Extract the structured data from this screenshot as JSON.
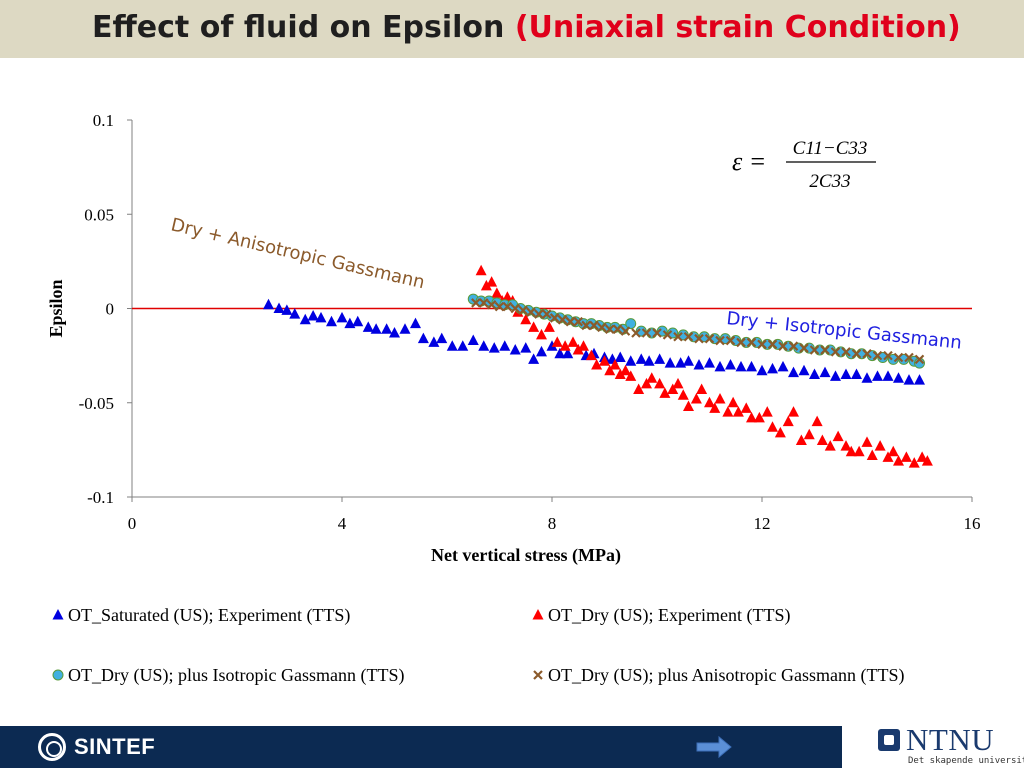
{
  "slide": {
    "title_main": "Effect of fluid on Epsilon ",
    "title_highlight": "(Uniaxial strain Condition)",
    "footer_logo": "SINTEF",
    "ntnu_name": "NTNU",
    "ntnu_sub": "Det skapende universitet"
  },
  "colors": {
    "title_bar": "#ddd9c3",
    "highlight": "#e0001b",
    "saturated": "#0000e0",
    "dry": "#ff0000",
    "isotropic": "#40b0e0",
    "anisotropic": "#8b5a2b",
    "zero_line": "#e00000",
    "footer": "#0c2a52"
  },
  "chart_data": {
    "type": "scatter",
    "title": "",
    "xlabel": "Net vertical stress (MPa)",
    "ylabel": "Epsilon",
    "xlim": [
      0,
      16
    ],
    "ylim": [
      -0.1,
      0.1
    ],
    "xticks": [
      "0",
      "4",
      "8",
      "12",
      "16"
    ],
    "yticks": [
      "0.1",
      "0.05",
      "0",
      "-0.05",
      "-0.1"
    ],
    "grid": false,
    "equation": {
      "lhs": "ε =",
      "numerator": "C11−C33",
      "denominator": "2C33"
    },
    "annotations": [
      {
        "text": "Dry + Anisotropic Gassmann",
        "color": "#8b5a2b"
      },
      {
        "text": "Dry + Isotropic Gassmann",
        "color": "#2020e0"
      }
    ],
    "series": [
      {
        "name": "OT_Saturated (US); Experiment (TTS)",
        "marker": "triangle",
        "color": "#0000e0",
        "x": [
          2.6,
          2.8,
          2.95,
          3.1,
          3.3,
          3.45,
          3.6,
          3.8,
          4.0,
          4.15,
          4.3,
          4.5,
          4.65,
          4.85,
          5.0,
          5.2,
          5.4,
          5.55,
          5.75,
          5.9,
          6.1,
          6.3,
          6.5,
          6.7,
          6.9,
          7.1,
          7.3,
          7.5,
          7.65,
          7.8,
          8.0,
          8.15,
          8.3,
          8.5,
          8.65,
          8.8,
          9.0,
          9.15,
          9.3,
          9.5,
          9.7,
          9.85,
          10.05,
          10.25,
          10.45,
          10.6,
          10.8,
          11.0,
          11.2,
          11.4,
          11.6,
          11.8,
          12.0,
          12.2,
          12.4,
          12.6,
          12.8,
          13.0,
          13.2,
          13.4,
          13.6,
          13.8,
          14.0,
          14.2,
          14.4,
          14.6,
          14.8,
          15.0
        ],
        "y": [
          0.002,
          0.0,
          -0.001,
          -0.003,
          -0.006,
          -0.004,
          -0.005,
          -0.007,
          -0.005,
          -0.008,
          -0.007,
          -0.01,
          -0.011,
          -0.011,
          -0.013,
          -0.011,
          -0.008,
          -0.016,
          -0.018,
          -0.016,
          -0.02,
          -0.02,
          -0.017,
          -0.02,
          -0.021,
          -0.02,
          -0.022,
          -0.021,
          -0.027,
          -0.023,
          -0.02,
          -0.024,
          -0.024,
          -0.022,
          -0.025,
          -0.024,
          -0.026,
          -0.027,
          -0.026,
          -0.028,
          -0.027,
          -0.028,
          -0.027,
          -0.029,
          -0.029,
          -0.028,
          -0.03,
          -0.029,
          -0.031,
          -0.03,
          -0.031,
          -0.031,
          -0.033,
          -0.032,
          -0.031,
          -0.034,
          -0.033,
          -0.035,
          -0.034,
          -0.036,
          -0.035,
          -0.035,
          -0.037,
          -0.036,
          -0.036,
          -0.037,
          -0.038,
          -0.038
        ]
      },
      {
        "name": "OT_Dry (US); Experiment (TTS)",
        "marker": "triangle",
        "color": "#ff0000",
        "x": [
          6.65,
          6.75,
          6.85,
          6.95,
          7.05,
          7.15,
          7.25,
          7.35,
          7.5,
          7.65,
          7.8,
          7.95,
          8.1,
          8.25,
          8.4,
          8.5,
          8.6,
          8.75,
          8.85,
          9.0,
          9.1,
          9.2,
          9.3,
          9.4,
          9.5,
          9.65,
          9.8,
          9.9,
          10.05,
          10.15,
          10.3,
          10.4,
          10.5,
          10.6,
          10.75,
          10.85,
          11.0,
          11.1,
          11.2,
          11.35,
          11.45,
          11.55,
          11.7,
          11.8,
          11.95,
          12.1,
          12.2,
          12.35,
          12.5,
          12.6,
          12.75,
          12.9,
          13.05,
          13.15,
          13.3,
          13.45,
          13.6,
          13.7,
          13.85,
          14.0,
          14.1,
          14.25,
          14.4,
          14.5,
          14.6,
          14.75,
          14.9,
          15.05,
          15.15
        ],
        "y": [
          0.02,
          0.012,
          0.014,
          0.008,
          0.004,
          0.006,
          0.004,
          -0.002,
          -0.006,
          -0.01,
          -0.014,
          -0.01,
          -0.018,
          -0.02,
          -0.018,
          -0.022,
          -0.02,
          -0.025,
          -0.03,
          -0.028,
          -0.033,
          -0.03,
          -0.035,
          -0.033,
          -0.036,
          -0.043,
          -0.04,
          -0.037,
          -0.04,
          -0.045,
          -0.043,
          -0.04,
          -0.046,
          -0.052,
          -0.048,
          -0.043,
          -0.05,
          -0.053,
          -0.048,
          -0.055,
          -0.05,
          -0.055,
          -0.053,
          -0.058,
          -0.058,
          -0.055,
          -0.063,
          -0.066,
          -0.06,
          -0.055,
          -0.07,
          -0.067,
          -0.06,
          -0.07,
          -0.073,
          -0.068,
          -0.073,
          -0.076,
          -0.076,
          -0.071,
          -0.078,
          -0.073,
          -0.079,
          -0.076,
          -0.081,
          -0.079,
          -0.082,
          -0.079,
          -0.081
        ]
      },
      {
        "name": "OT_Dry (US); plus Isotropic Gassmann (TTS)",
        "marker": "circle",
        "color": "#40b0e0",
        "x": [
          6.5,
          6.65,
          6.8,
          6.95,
          7.1,
          7.25,
          7.4,
          7.55,
          7.7,
          7.85,
          8.0,
          8.15,
          8.3,
          8.45,
          8.6,
          8.75,
          8.9,
          9.05,
          9.2,
          9.35,
          9.5,
          9.7,
          9.9,
          10.1,
          10.3,
          10.5,
          10.7,
          10.9,
          11.1,
          11.3,
          11.5,
          11.7,
          11.9,
          12.1,
          12.3,
          12.5,
          12.7,
          12.9,
          13.1,
          13.3,
          13.5,
          13.7,
          13.9,
          14.1,
          14.3,
          14.5,
          14.7,
          14.9,
          15.0
        ],
        "y": [
          0.005,
          0.004,
          0.004,
          0.003,
          0.002,
          0.002,
          0.0,
          -0.001,
          -0.002,
          -0.003,
          -0.004,
          -0.005,
          -0.006,
          -0.007,
          -0.008,
          -0.008,
          -0.009,
          -0.01,
          -0.01,
          -0.011,
          -0.008,
          -0.012,
          -0.013,
          -0.012,
          -0.013,
          -0.014,
          -0.015,
          -0.015,
          -0.016,
          -0.016,
          -0.017,
          -0.018,
          -0.018,
          -0.019,
          -0.019,
          -0.02,
          -0.021,
          -0.021,
          -0.022,
          -0.022,
          -0.023,
          -0.024,
          -0.024,
          -0.025,
          -0.026,
          -0.027,
          -0.027,
          -0.028,
          -0.029
        ]
      },
      {
        "name": "OT_Dry (US); plus Anisotropic Gassmann (TTS)",
        "marker": "x",
        "color": "#8b5a2b",
        "x": [
          6.55,
          6.7,
          6.85,
          7.0,
          7.15,
          7.3,
          7.45,
          7.6,
          7.75,
          7.9,
          8.05,
          8.2,
          8.35,
          8.5,
          8.65,
          8.8,
          8.95,
          9.1,
          9.25,
          9.4,
          9.6,
          9.8,
          10.0,
          10.2,
          10.4,
          10.6,
          10.8,
          11.0,
          11.2,
          11.4,
          11.6,
          11.8,
          12.0,
          12.2,
          12.4,
          12.6,
          12.8,
          13.0,
          13.2,
          13.4,
          13.6,
          13.8,
          14.0,
          14.2,
          14.4,
          14.6,
          14.8,
          15.0
        ],
        "y": [
          0.003,
          0.003,
          0.002,
          0.001,
          0.001,
          0.0,
          -0.001,
          -0.002,
          -0.003,
          -0.003,
          -0.005,
          -0.006,
          -0.007,
          -0.007,
          -0.009,
          -0.009,
          -0.01,
          -0.011,
          -0.011,
          -0.012,
          -0.013,
          -0.013,
          -0.013,
          -0.014,
          -0.015,
          -0.015,
          -0.016,
          -0.016,
          -0.017,
          -0.017,
          -0.018,
          -0.018,
          -0.019,
          -0.019,
          -0.02,
          -0.02,
          -0.021,
          -0.022,
          -0.022,
          -0.023,
          -0.023,
          -0.024,
          -0.024,
          -0.025,
          -0.025,
          -0.026,
          -0.026,
          -0.027
        ]
      }
    ],
    "reference_line": {
      "y": 0,
      "color": "#e00000"
    }
  }
}
